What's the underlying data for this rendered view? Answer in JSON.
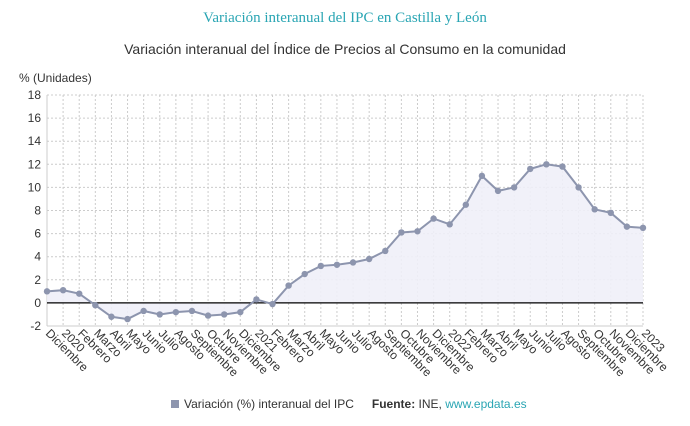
{
  "chart_data": {
    "type": "area",
    "title": "Variación interanual del IPC en Castilla y León",
    "subtitle": "Variación interanual del Índice de Precios al Consumo en la comunidad",
    "ylabel": "% (Unidades)",
    "ylim": [
      -2,
      18
    ],
    "yticks": [
      -2,
      0,
      2,
      4,
      6,
      8,
      10,
      12,
      14,
      16,
      18
    ],
    "grid": true,
    "legend_position": "bottom",
    "colors": {
      "line": "#8d95ae",
      "fill": "#eff0f8",
      "zero_line": "#000000",
      "title": "#29a5b3"
    },
    "x_labels": [
      "Diciembre",
      "2020",
      "Febrero",
      "Marzo",
      "Abril",
      "Mayo",
      "Junio",
      "Julio",
      "Agosto",
      "Septiembre",
      "Octubre",
      "Noviembre",
      "Diciembre",
      "2021",
      "Febrero",
      "Marzo",
      "Abril",
      "Mayo",
      "Junio",
      "Julio",
      "Agosto",
      "Septiembre",
      "Octubre",
      "Noviembre",
      "Diciembre",
      "2022",
      "Febrero",
      "Marzo",
      "Abril",
      "Mayo",
      "Junio",
      "Julio",
      "Agosto",
      "Septiembre",
      "Octubre",
      "Noviembre",
      "Diciembre",
      "2023"
    ],
    "series": [
      {
        "name": "Variación (%) interanual del IPC",
        "values": [
          1.0,
          1.1,
          0.8,
          -0.2,
          -1.2,
          -1.4,
          -0.7,
          -1.0,
          -0.8,
          -0.7,
          -1.1,
          -1.0,
          -0.8,
          0.3,
          -0.1,
          1.5,
          2.5,
          3.2,
          3.3,
          3.5,
          3.8,
          4.5,
          6.1,
          6.2,
          7.3,
          6.8,
          8.5,
          11.0,
          9.7,
          10.0,
          11.6,
          12.0,
          11.8,
          10.0,
          8.1,
          7.8,
          6.6,
          6.5
        ]
      }
    ]
  },
  "legend": {
    "series_label": "Variación (%) interanual del IPC",
    "source_label": "Fuente:",
    "source_text": "INE,",
    "source_link": "www.epdata.es"
  }
}
